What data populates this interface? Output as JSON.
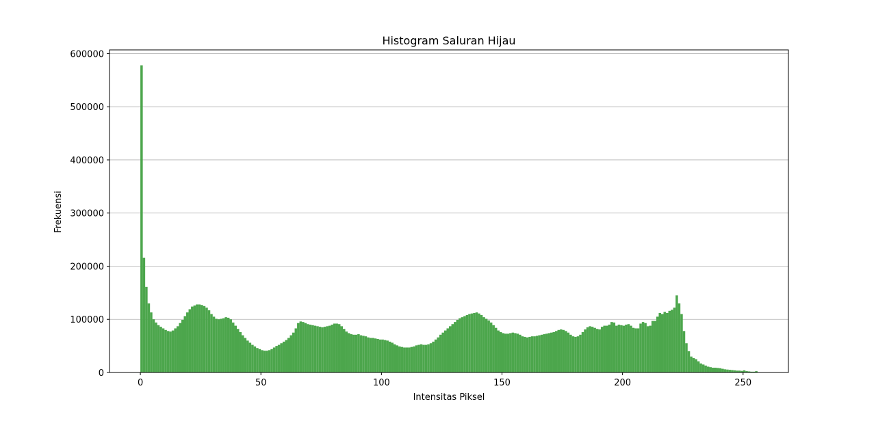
{
  "chart_data": {
    "type": "histogram",
    "title": "Histogram Saluran Hijau",
    "xlabel": "Intensitas Piksel",
    "ylabel": "Frekuensi",
    "color": "#4ca64c",
    "bins": [
      0,
      1,
      2,
      3,
      4,
      5,
      6,
      7,
      8,
      9,
      10,
      11,
      12,
      13,
      14,
      15,
      16,
      17,
      18,
      19,
      20,
      21,
      22,
      23,
      24,
      25,
      26,
      27,
      28,
      29,
      30,
      31,
      32,
      33,
      34,
      35,
      36,
      37,
      38,
      39,
      40,
      41,
      42,
      43,
      44,
      45,
      46,
      47,
      48,
      49,
      50,
      51,
      52,
      53,
      54,
      55,
      56,
      57,
      58,
      59,
      60,
      61,
      62,
      63,
      64,
      65,
      66,
      67,
      68,
      69,
      70,
      71,
      72,
      73,
      74,
      75,
      76,
      77,
      78,
      79,
      80,
      81,
      82,
      83,
      84,
      85,
      86,
      87,
      88,
      89,
      90,
      91,
      92,
      93,
      94,
      95,
      96,
      97,
      98,
      99,
      100,
      101,
      102,
      103,
      104,
      105,
      106,
      107,
      108,
      109,
      110,
      111,
      112,
      113,
      114,
      115,
      116,
      117,
      118,
      119,
      120,
      121,
      122,
      123,
      124,
      125,
      126,
      127,
      128,
      129,
      130,
      131,
      132,
      133,
      134,
      135,
      136,
      137,
      138,
      139,
      140,
      141,
      142,
      143,
      144,
      145,
      146,
      147,
      148,
      149,
      150,
      151,
      152,
      153,
      154,
      155,
      156,
      157,
      158,
      159,
      160,
      161,
      162,
      163,
      164,
      165,
      166,
      167,
      168,
      169,
      170,
      171,
      172,
      173,
      174,
      175,
      176,
      177,
      178,
      179,
      180,
      181,
      182,
      183,
      184,
      185,
      186,
      187,
      188,
      189,
      190,
      191,
      192,
      193,
      194,
      195,
      196,
      197,
      198,
      199,
      200,
      201,
      202,
      203,
      204,
      205,
      206,
      207,
      208,
      209,
      210,
      211,
      212,
      213,
      214,
      215,
      216,
      217,
      218,
      219,
      220,
      221,
      222,
      223,
      224,
      225,
      226,
      227,
      228,
      229,
      230,
      231,
      232,
      233,
      234,
      235,
      236,
      237,
      238,
      239,
      240,
      241,
      242,
      243,
      244,
      245,
      246,
      247,
      248,
      249,
      250,
      251,
      252,
      253,
      254,
      255,
      256
    ],
    "counts": [
      578000,
      216000,
      161000,
      130000,
      113000,
      100000,
      94000,
      89000,
      86000,
      83000,
      80000,
      78000,
      77000,
      79000,
      83000,
      87000,
      93000,
      99000,
      106000,
      113000,
      119000,
      124000,
      126000,
      128000,
      128000,
      127000,
      125000,
      122000,
      117000,
      110000,
      105000,
      101000,
      100000,
      101000,
      102000,
      104000,
      103000,
      100000,
      94000,
      88000,
      82000,
      76000,
      70000,
      65000,
      60000,
      56000,
      52000,
      49000,
      46000,
      44000,
      42000,
      41000,
      41000,
      42000,
      44000,
      47000,
      50000,
      52000,
      55000,
      58000,
      61000,
      65000,
      70000,
      75000,
      83000,
      93000,
      96000,
      95000,
      93000,
      91000,
      90000,
      89000,
      88000,
      87000,
      86000,
      85000,
      86000,
      87000,
      88000,
      90000,
      92000,
      92000,
      91000,
      87000,
      82000,
      77000,
      74000,
      72000,
      71000,
      71000,
      72000,
      70000,
      69000,
      68000,
      66000,
      65000,
      65000,
      64000,
      63000,
      62000,
      62000,
      61000,
      60000,
      58000,
      56000,
      53000,
      51000,
      49000,
      48000,
      47000,
      47000,
      47000,
      48000,
      49000,
      51000,
      52000,
      53000,
      52000,
      52000,
      53000,
      55000,
      58000,
      62000,
      66000,
      71000,
      75000,
      79000,
      83000,
      87000,
      91000,
      95000,
      99000,
      102000,
      104000,
      106000,
      108000,
      110000,
      111000,
      112000,
      113000,
      111000,
      108000,
      104000,
      101000,
      98000,
      94000,
      89000,
      84000,
      79000,
      76000,
      74000,
      73000,
      73000,
      74000,
      75000,
      74000,
      73000,
      71000,
      68000,
      67000,
      66000,
      67000,
      68000,
      68000,
      69000,
      70000,
      71000,
      72000,
      73000,
      74000,
      75000,
      76000,
      78000,
      80000,
      81000,
      80000,
      78000,
      75000,
      71000,
      68000,
      67000,
      68000,
      71000,
      76000,
      81000,
      85000,
      87000,
      86000,
      84000,
      82000,
      81000,
      86000,
      88000,
      88000,
      90000,
      95000,
      94000,
      88000,
      90000,
      89000,
      88000,
      90000,
      91000,
      88000,
      84000,
      83000,
      83000,
      92000,
      95000,
      93000,
      87000,
      88000,
      97000,
      97000,
      105000,
      112000,
      110000,
      114000,
      112000,
      116000,
      118000,
      122000,
      145000,
      130000,
      110000,
      78000,
      55000,
      40000,
      30000,
      27000,
      25000,
      21000,
      17000,
      15000,
      13000,
      11000,
      10000,
      9000,
      9000,
      8500,
      8000,
      7000,
      6000,
      5500,
      5000,
      4500,
      4000,
      3500,
      3500,
      3000,
      4000,
      2500,
      2000,
      1500,
      1500,
      2500
    ],
    "xlim": [
      -12.8,
      268.8
    ],
    "ylim": [
      0,
      607000
    ],
    "xticks": [
      0,
      50,
      100,
      150,
      200,
      250
    ],
    "yticks": [
      0,
      100000,
      200000,
      300000,
      400000,
      500000,
      600000
    ],
    "grid": "y"
  }
}
